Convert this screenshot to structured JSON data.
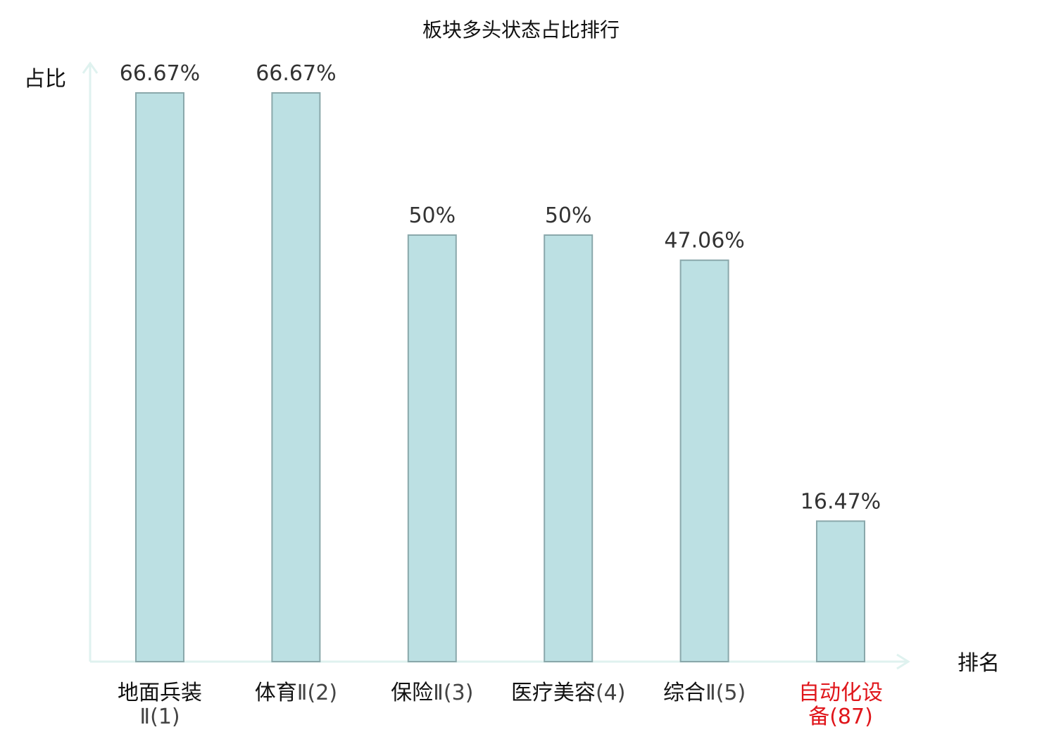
{
  "chart_data": {
    "type": "bar",
    "title": "板块多头状态占比排行",
    "ylabel": "占比",
    "xlabel": "排名",
    "ylim": [
      0,
      70
    ],
    "grid": false,
    "legend": "none",
    "categories": [
      {
        "name": "地面兵装",
        "suffix": "Ⅱ(1)",
        "highlight": false
      },
      {
        "name": "体育",
        "suffix": "Ⅱ(2)",
        "highlight": false
      },
      {
        "name": "保险",
        "suffix": "Ⅱ(3)",
        "highlight": false
      },
      {
        "name": "医疗美容",
        "suffix": "(4)",
        "highlight": false
      },
      {
        "name": "综合",
        "suffix": "Ⅱ(5)",
        "highlight": false
      },
      {
        "name": "自动化设备",
        "suffix": "(87)",
        "highlight": true
      }
    ],
    "values": [
      66.67,
      66.67,
      50,
      50,
      47.06,
      16.47
    ],
    "value_labels": [
      "66.67%",
      "66.67%",
      "50%",
      "50%",
      "47.06%",
      "16.47%"
    ]
  },
  "colors": {
    "bar_fill": "#bce0e3",
    "bar_stroke": "#8aa8ab",
    "axis": "#dff2ef",
    "highlight_text": "#e0161b",
    "normal_text": "#111111"
  }
}
